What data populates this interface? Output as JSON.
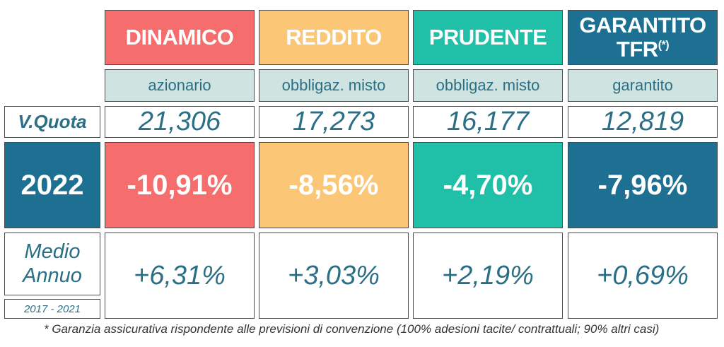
{
  "funds": [
    {
      "name": "DINAMICO",
      "type": "azionario",
      "quota": "21,306",
      "ret_year": "-10,91%",
      "ret_avg": "+6,31%"
    },
    {
      "name": "REDDITO",
      "type": "obbligaz. misto",
      "quota": "17,273",
      "ret_year": "-8,56%",
      "ret_avg": "+3,03%"
    },
    {
      "name": "PRUDENTE",
      "type": "obbligaz. misto",
      "quota": "16,177",
      "ret_year": "-4,70%",
      "ret_avg": "+2,19%"
    },
    {
      "name_line1": "GARANTITO",
      "name_line2": "TFR",
      "name_mark": "(*)",
      "type": "garantito",
      "quota": "12,819",
      "ret_year": "-7,96%",
      "ret_avg": "+0,69%"
    }
  ],
  "labels": {
    "quota": "V.Quota",
    "year": "2022",
    "avg_line1": "Medio",
    "avg_line2": "Annuo",
    "avg_period": "2017 - 2021"
  },
  "footnote": "* Garanzia assicurativa rispondente alle previsioni di convenzione (100% adesioni tacite/ contrattuali; 90% altri casi)",
  "colors": {
    "dinamico": "#f56d6d",
    "reddito": "#fcc677",
    "prudente": "#1fc0a7",
    "garantito": "#1e7093",
    "text_blue": "#2b6f86",
    "subheader_bg": "#cfe3e0"
  }
}
